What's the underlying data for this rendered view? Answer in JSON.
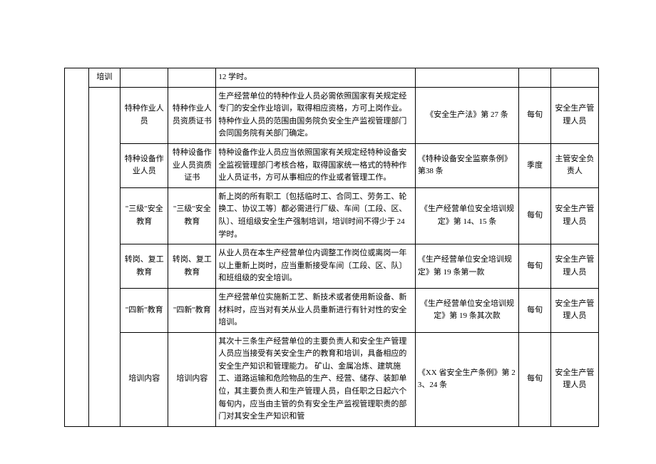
{
  "table": {
    "rows": [
      {
        "c1": "培训",
        "c2": "",
        "c3": "",
        "c4": "12 学时。",
        "c5": "",
        "c6": "",
        "c7": ""
      },
      {
        "c2": "特种作业人员",
        "c3": "特种作业人员资质证书",
        "c4": "生产经营单位的特种作业人员必需依照国家有关规定经专门的安全作业培训，取得相应资格，方可上岗作业。特种作业人员的范围由国务院负安全生产监视管理部门会同国务院有关部门确定。",
        "c5": "《安全生产法》第 27 条",
        "c6": "每旬",
        "c7": "安全生产管理人员"
      },
      {
        "c2": "特种设备作业人员",
        "c3": "特种设备作业人员资质证书",
        "c4": "特种设备作业人员应当依照国家有关规定经特种设备安全监视管理部门考核合格，取得国家统一格式的特种作业人员证书，方可从事相应的作业或者管理工作。",
        "c5": "《特种设备安全监察条例》第38 条",
        "c6": "季度",
        "c7": "主管安全负责人"
      },
      {
        "c2": "\"三级\"安全教育",
        "c3": "\"三级\"安全教育",
        "c4": "新上岗的所有职工〔包括临时工、合同工、劳务工、轮换工、协议工等〕都必需进行厂级、车间〔工段、区、队〕、班组级安全生产强制培训，培训时间不得少于 24 学时。",
        "c5": "《生产经营单位安全培训规定》第 14、15 条",
        "c6": "每旬",
        "c7": "安全生产管理人员"
      },
      {
        "c2": "转岗、复工教育",
        "c3": "转岗、复工教育",
        "c4": "从业人员在本生产经营单位内调整工作岗位或离岗一年以上重新上岗时，应当重新接受车间〔工段、区、队〕和班组级的安全培训。",
        "c5": "《生产经营单位安全培训规定》第 19 条第一款",
        "c6": "每旬",
        "c7": "安全生产管理人员"
      },
      {
        "c2": "\"四新\"教育",
        "c3": "\"四新\"教育",
        "c4": "生产经营单位实施新工艺、新技术或者使用新设备、新材料时，应当对有关从业人员重新进行有针对性的安全培训。",
        "c5": "《生产经营单位安全培训规定》第 19 条其次款",
        "c6": "每旬",
        "c7": "安全生产管理人员"
      },
      {
        "c2": "培训内容",
        "c3": "培训内容",
        "c4": "其次十三条生产经营单位的主要负责人和安全生产管理人员应当接受有关安全生产的教育和培训，具备相应的安全生产知识和管理能力。\n矿山、金属冶炼、建筑施工、道路运输和危险物品的生产、经营、储存、装卸单位，其主要负责人和生产管理人员，自任职之日起六个每旬内，应当由主管的负有安全生产监视管理职责的部门对其安全生产知识和管",
        "c5": "《XX 省安全生产条例》第 23、24 条",
        "c6": "每旬",
        "c7": "安全生产管理人员"
      }
    ]
  }
}
